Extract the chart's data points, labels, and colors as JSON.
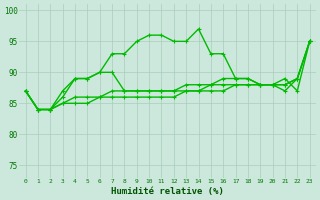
{
  "xlabel": "Humidité relative (%)",
  "xlim": [
    -0.5,
    23.5
  ],
  "ylim": [
    73,
    101
  ],
  "yticks": [
    75,
    80,
    85,
    90,
    95,
    100
  ],
  "xticks": [
    0,
    1,
    2,
    3,
    4,
    5,
    6,
    7,
    8,
    9,
    10,
    11,
    12,
    13,
    14,
    15,
    16,
    17,
    18,
    19,
    20,
    21,
    22,
    23
  ],
  "background_color": "#cce8dc",
  "grid_color": "#aaccbc",
  "line_color": "#00bb00",
  "figsize": [
    3.2,
    2.0
  ],
  "dpi": 100,
  "series": [
    [
      87,
      84,
      84,
      87,
      89,
      89,
      90,
      93,
      93,
      95,
      96,
      96,
      95,
      95,
      97,
      93,
      93,
      89,
      89,
      88,
      88,
      89,
      87,
      95
    ],
    [
      87,
      84,
      84,
      86,
      89,
      89,
      90,
      90,
      87,
      87,
      87,
      87,
      87,
      87,
      87,
      88,
      89,
      89,
      89,
      88,
      88,
      87,
      89,
      95
    ],
    [
      87,
      84,
      84,
      85,
      86,
      86,
      86,
      87,
      87,
      87,
      87,
      87,
      87,
      88,
      88,
      88,
      88,
      88,
      88,
      88,
      88,
      88,
      89,
      95
    ],
    [
      87,
      84,
      84,
      85,
      85,
      85,
      86,
      86,
      86,
      86,
      86,
      86,
      86,
      87,
      87,
      87,
      87,
      88,
      88,
      88,
      88,
      88,
      89,
      95
    ]
  ]
}
